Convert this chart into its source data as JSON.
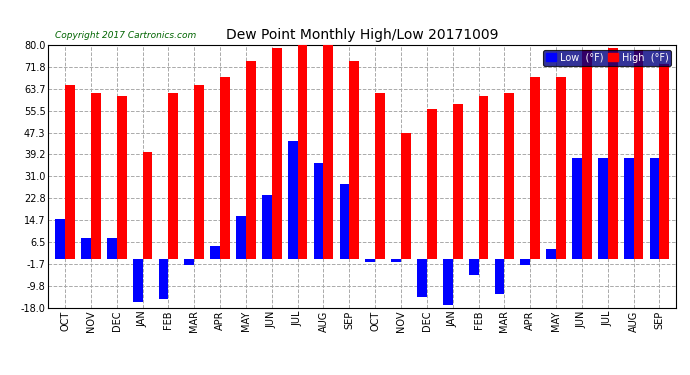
{
  "title": "Dew Point Monthly High/Low 20171009",
  "copyright": "Copyright 2017 Cartronics.com",
  "legend_labels": [
    "Low  (°F)",
    "High  (°F)"
  ],
  "legend_colors": [
    "#0000ff",
    "#ff0000"
  ],
  "bg_color": "#ffffff",
  "plot_bg_color": "#ffffff",
  "grid_color": "#aaaaaa",
  "months": [
    "OCT",
    "NOV",
    "DEC",
    "JAN",
    "FEB",
    "MAR",
    "APR",
    "MAY",
    "JUN",
    "JUL",
    "AUG",
    "SEP",
    "OCT",
    "NOV",
    "DEC",
    "JAN",
    "FEB",
    "MAR",
    "APR",
    "MAY",
    "JUN",
    "JUL",
    "AUG",
    "SEP"
  ],
  "high_values": [
    65.0,
    62.0,
    61.0,
    40.0,
    62.0,
    65.0,
    68.0,
    74.0,
    79.0,
    82.0,
    80.0,
    74.0,
    62.0,
    47.0,
    56.0,
    58.0,
    61.0,
    62.0,
    68.0,
    68.0,
    78.0,
    79.0,
    78.0,
    73.0
  ],
  "low_values": [
    15.0,
    8.0,
    8.0,
    -16.0,
    -15.0,
    -2.0,
    5.0,
    16.0,
    24.0,
    44.0,
    36.0,
    28.0,
    -1.0,
    -1.0,
    -14.0,
    -17.0,
    -6.0,
    -13.0,
    -2.0,
    4.0,
    38.0,
    38.0,
    38.0,
    38.0
  ],
  "ylim": [
    -18.0,
    80.0
  ],
  "yticks": [
    -18.0,
    -9.8,
    -1.7,
    6.5,
    14.7,
    22.8,
    31.0,
    39.2,
    47.3,
    55.5,
    63.7,
    71.8,
    80.0
  ],
  "bar_width": 0.38,
  "high_color": "#ff0000",
  "low_color": "#0000ff",
  "tick_label_color": "#000000",
  "x_label_color": "#000000",
  "title_color": "#000000",
  "copyright_color": "#006400",
  "figwidth": 6.9,
  "figheight": 3.75,
  "dpi": 100
}
